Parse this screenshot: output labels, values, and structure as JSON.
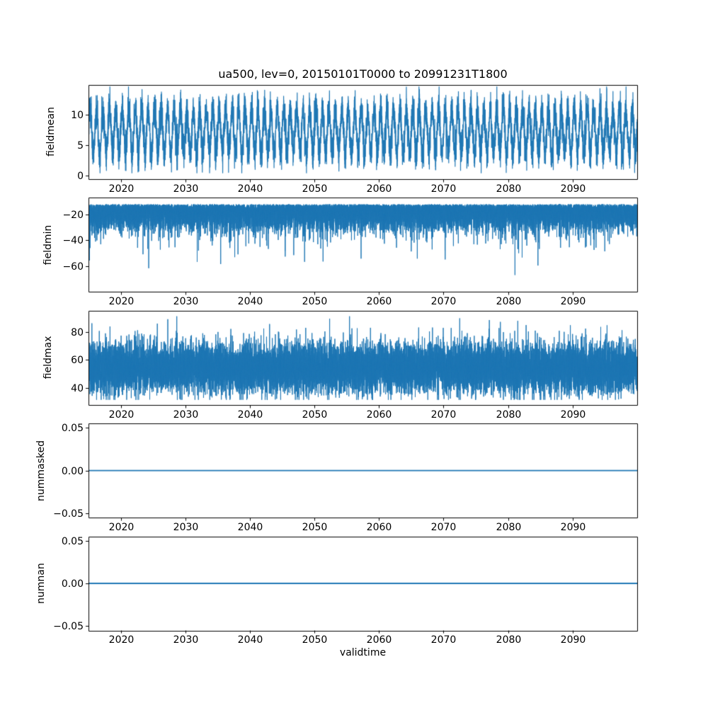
{
  "chart_data": {
    "type": "line",
    "title": "ua500, lev=0, 20150101T0000 to 20991231T1800",
    "xlabel": "validtime",
    "x_range": [
      2015,
      2100
    ],
    "x_tick_values": [
      2020,
      2030,
      2040,
      2050,
      2060,
      2070,
      2080,
      2090
    ],
    "x_tick_labels": [
      "2020",
      "2030",
      "2040",
      "2050",
      "2060",
      "2070",
      "2080",
      "2090"
    ],
    "line_color": "#1f77b4",
    "axis_color": "#000000",
    "subplots": [
      {
        "name": "fieldmean",
        "ylabel": "fieldmean",
        "ylim": [
          -0.6,
          14.9
        ],
        "y_tick_values": [
          0,
          5,
          10
        ],
        "y_tick_labels": [
          "0",
          "5",
          "10"
        ],
        "series": {
          "name": "fieldmean",
          "synth": {
            "kind": "seasonal",
            "seed": 7,
            "points": 9000,
            "base": 7.3,
            "amp": 3.6,
            "noise": 1.4,
            "clamp": [
              0.4,
              14.6
            ]
          }
        }
      },
      {
        "name": "fieldmin",
        "ylabel": "fieldmin",
        "ylim": [
          -80,
          -7
        ],
        "y_tick_values": [
          -60,
          -40,
          -20
        ],
        "y_tick_labels": [
          "−60",
          "−40",
          "−20"
        ],
        "series": {
          "name": "fieldmin",
          "synth": {
            "kind": "skewneg",
            "seed": 11,
            "points": 16000,
            "base": -12,
            "spread": 9,
            "spike_prob": 0.012,
            "spike_amp": 34,
            "clamp": [
              -76,
              -9.5
            ]
          }
        }
      },
      {
        "name": "fieldmax",
        "ylabel": "fieldmax",
        "ylim": [
          28,
          95
        ],
        "y_tick_values": [
          40,
          60,
          80
        ],
        "y_tick_labels": [
          "40",
          "60",
          "80"
        ],
        "series": {
          "name": "fieldmax",
          "synth": {
            "kind": "band",
            "seed": 13,
            "points": 16000,
            "base": 54,
            "spread": 8.5,
            "spike_prob": 0.02,
            "spike_amp": 24,
            "clamp": [
              31.5,
              91
            ]
          }
        }
      },
      {
        "name": "nummasked",
        "ylabel": "nummasked",
        "ylim": [
          -0.055,
          0.055
        ],
        "y_tick_values": [
          -0.05,
          0,
          0.05
        ],
        "y_tick_labels": [
          "−0.05",
          "0.00",
          "0.05"
        ],
        "series": {
          "name": "nummasked",
          "synth": {
            "kind": "constant",
            "points": 2,
            "value": 0
          }
        }
      },
      {
        "name": "numnan",
        "ylabel": "numnan",
        "ylim": [
          -0.055,
          0.055
        ],
        "y_tick_values": [
          -0.05,
          0,
          0.05
        ],
        "y_tick_labels": [
          "−0.05",
          "0.00",
          "0.05"
        ],
        "series": {
          "name": "numnan",
          "synth": {
            "kind": "constant",
            "points": 2,
            "value": 0
          }
        }
      }
    ]
  }
}
